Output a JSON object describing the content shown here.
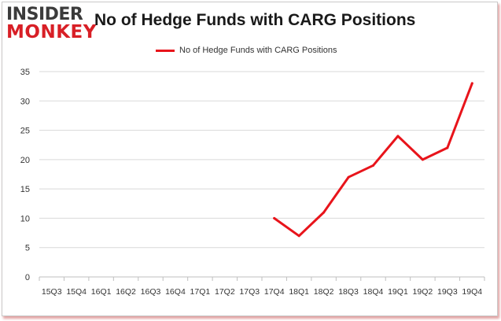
{
  "logo": {
    "line1": "INSIDER",
    "line2": "MONKEY"
  },
  "chart_data": {
    "type": "line",
    "title": "No of Hedge Funds with CARG Positions",
    "xlabel": "",
    "ylabel": "",
    "categories": [
      "15Q3",
      "15Q4",
      "16Q1",
      "16Q2",
      "16Q3",
      "16Q4",
      "17Q1",
      "17Q2",
      "17Q3",
      "17Q4",
      "18Q1",
      "18Q2",
      "18Q3",
      "18Q4",
      "19Q1",
      "19Q2",
      "19Q3",
      "19Q4"
    ],
    "series": [
      {
        "name": "No of Hedge Funds with CARG Positions",
        "color": "#e8141b",
        "values": [
          null,
          null,
          null,
          null,
          null,
          null,
          null,
          null,
          null,
          10,
          7,
          11,
          17,
          19,
          24,
          20,
          22,
          33
        ]
      }
    ],
    "ylim": [
      0,
      35
    ],
    "yticks": [
      0,
      5,
      10,
      15,
      20,
      25,
      30,
      35
    ],
    "grid": true,
    "legend_position": "top-center"
  }
}
